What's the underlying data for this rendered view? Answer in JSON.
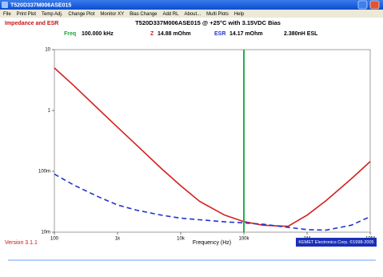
{
  "window": {
    "title": "T520D337M006ASE015",
    "menu": [
      "File",
      "Print Plot",
      "Temp Adj.",
      "Change Plot",
      "Monitor XY",
      "Bias Change",
      "Add RL",
      "About...",
      "Multi Plots",
      "Help"
    ],
    "mode": "Impedance and ESR",
    "heading": "T520D337M006ASE015 @ +25°C with 3.15VDC Bias",
    "version": "Version 3.1.1",
    "copyright": "KEMET Electronics Corp. ©1998-2005"
  },
  "chart_data": {
    "type": "line",
    "readout": {
      "freq_label": "Freq",
      "freq": "100.000 kHz",
      "z_label": "Z",
      "z": "14.88 mOhm",
      "esr_label": "ESR",
      "esr": "14.17 mOhm",
      "esl": "2.380nH ESL"
    },
    "marker_x": 100000,
    "marker_color": "#22b14c",
    "x_label": "Frequency (Hz)",
    "x_log": true,
    "y_log": true,
    "xlim": [
      100,
      10000000
    ],
    "ylim": [
      0.01,
      10
    ],
    "xticks": [
      100,
      {
        "value": 1000,
        "label": "1k"
      },
      {
        "value": 10000,
        "label": "10k"
      },
      {
        "value": 100000,
        "label": "100k"
      },
      {
        "value": 1000000,
        "label": "1M"
      },
      {
        "value": 10000000,
        "label": "10M"
      }
    ],
    "yticks": [
      {
        "value": 0.01,
        "label": "10m"
      },
      {
        "value": 0.1,
        "label": "100m"
      },
      1,
      10
    ],
    "x": [
      100,
      200,
      500,
      1000,
      2000,
      5000,
      10000,
      20000,
      50000,
      100000,
      200000,
      500000,
      1000000,
      2000000,
      5000000,
      10000000
    ],
    "series": [
      {
        "name": "Z",
        "color": "#d42020",
        "dashed": false,
        "values": [
          5,
          2.6,
          1.05,
          0.53,
          0.27,
          0.11,
          0.058,
          0.032,
          0.019,
          0.0149,
          0.013,
          0.0125,
          0.019,
          0.033,
          0.075,
          0.145
        ]
      },
      {
        "name": "ESR",
        "color": "#2233cc",
        "dashed": true,
        "values": [
          0.09,
          0.06,
          0.038,
          0.028,
          0.023,
          0.019,
          0.017,
          0.016,
          0.0148,
          0.0142,
          0.0135,
          0.012,
          0.011,
          0.0108,
          0.013,
          0.018
        ]
      }
    ]
  }
}
